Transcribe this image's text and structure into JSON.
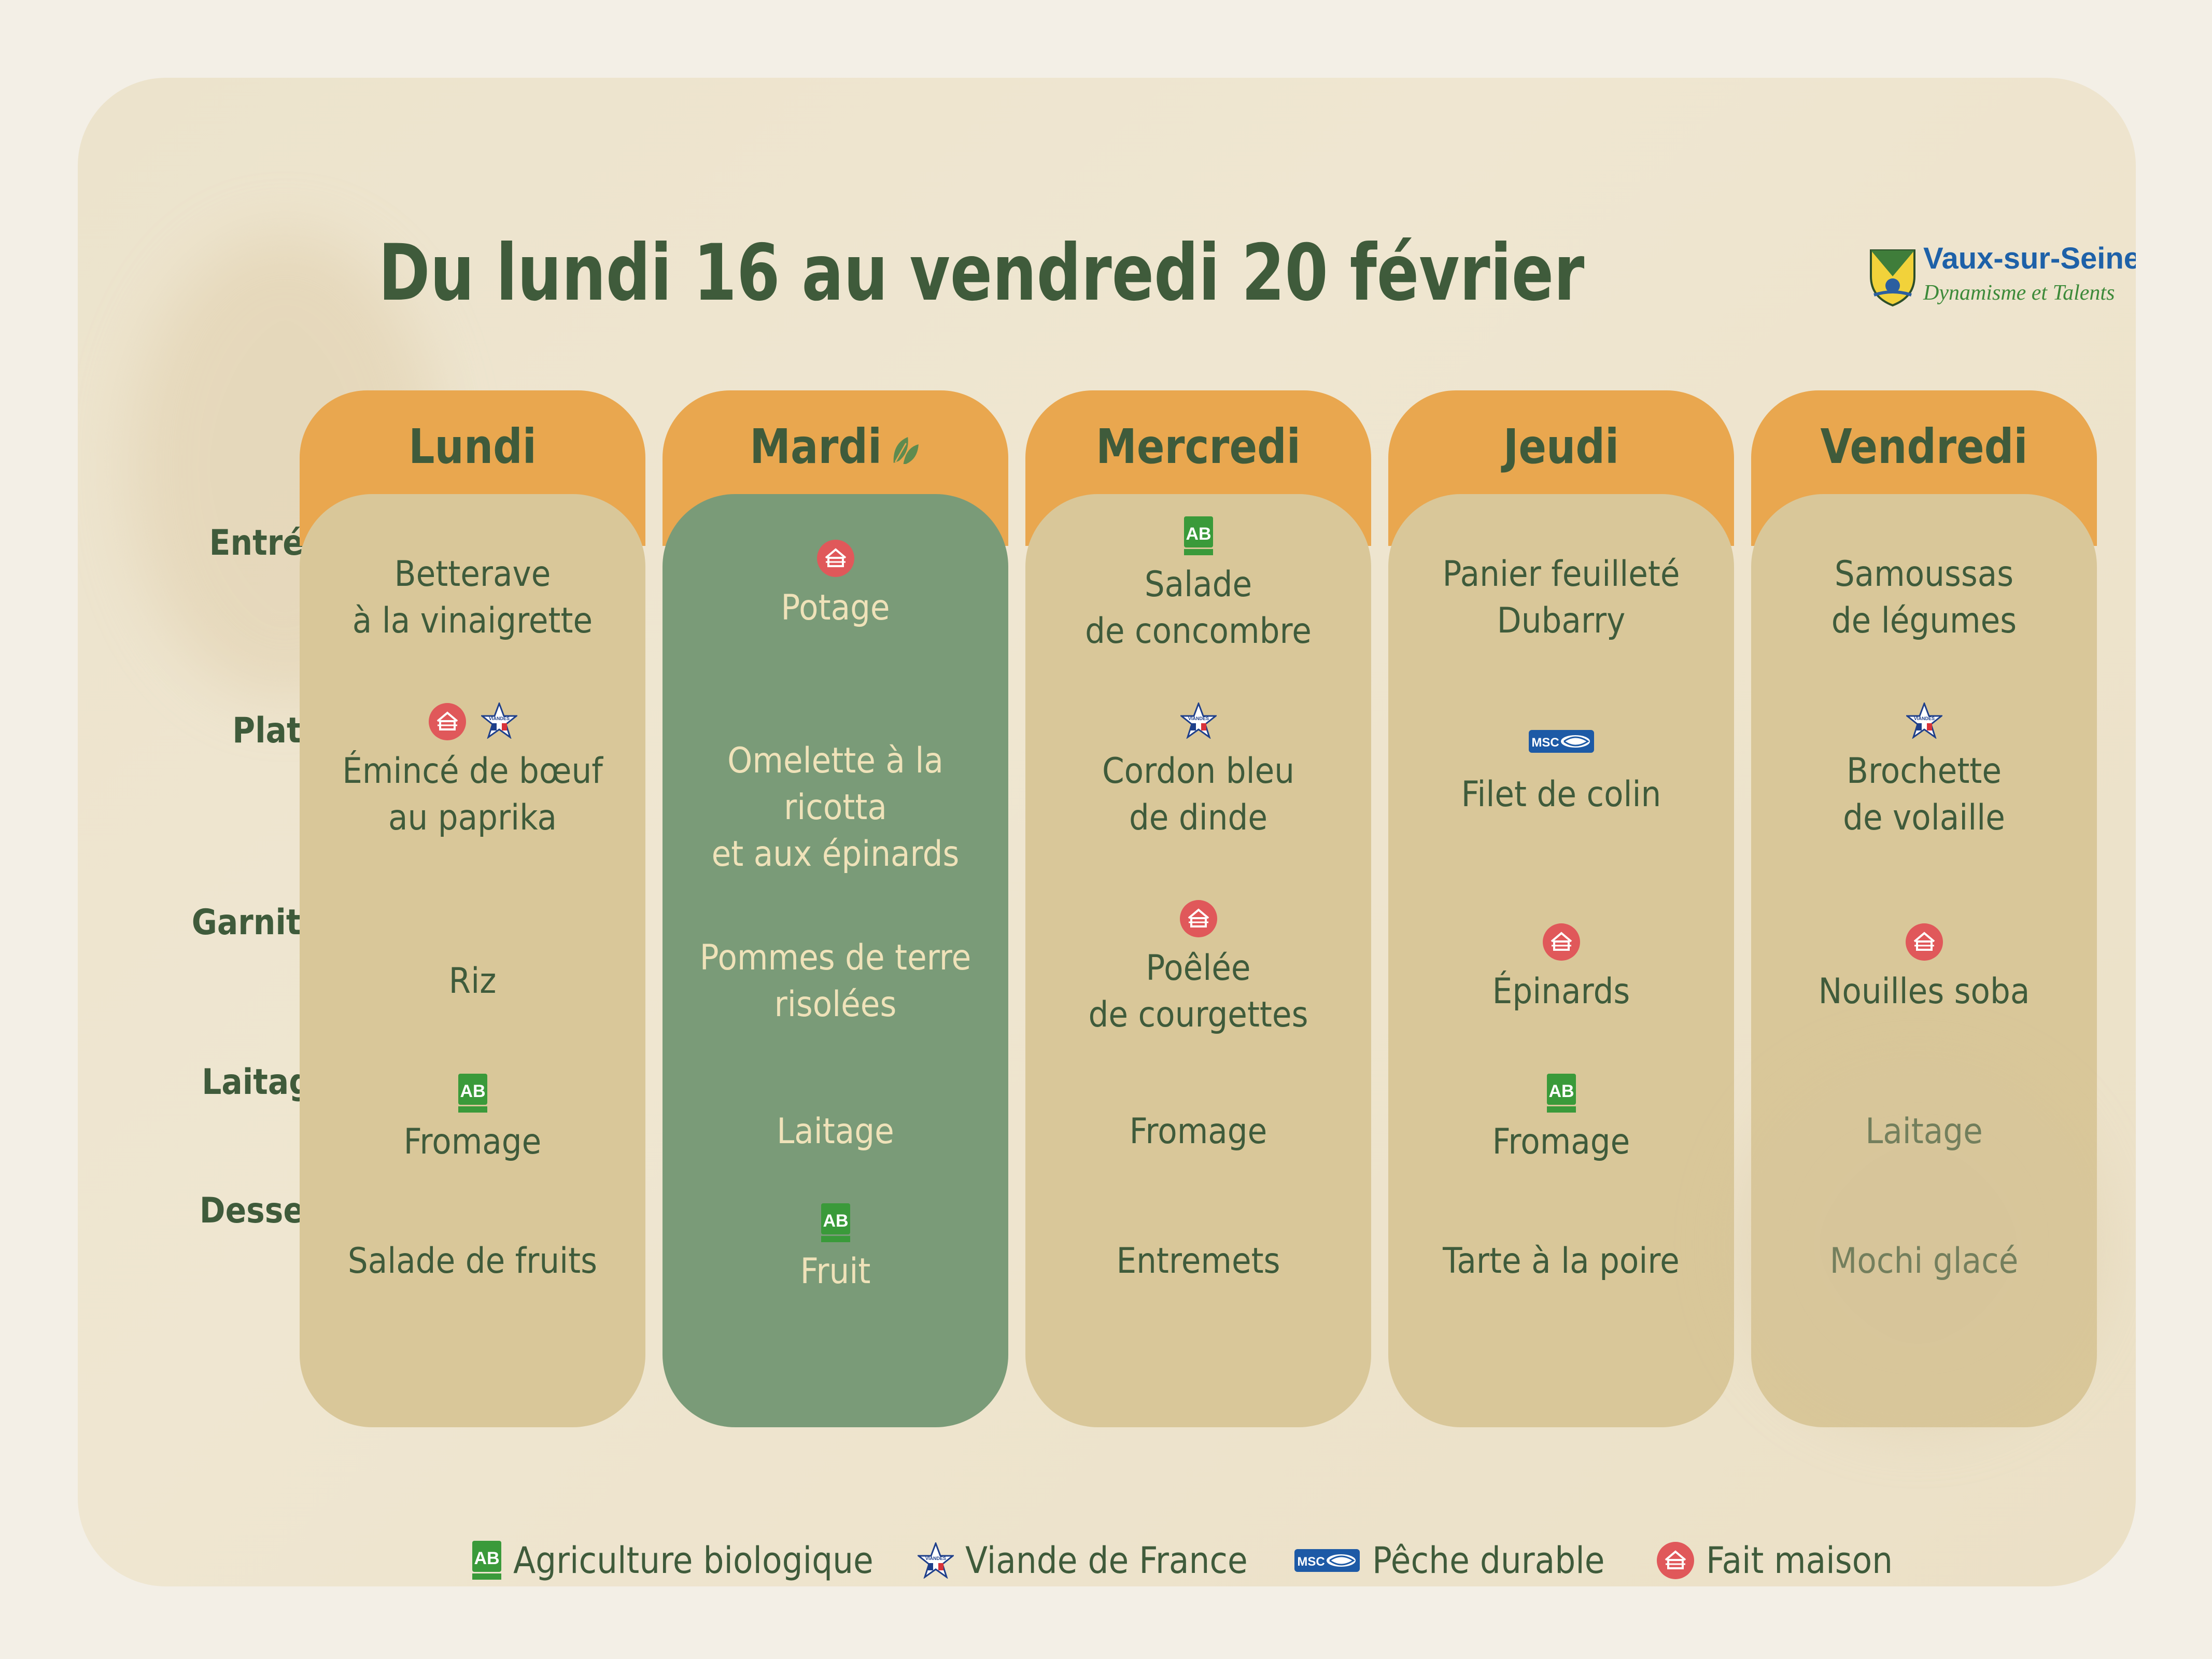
{
  "title": "Du lundi 16 au vendredi 20 février",
  "logo": {
    "name": "Vaux-sur-Seine",
    "tagline": "Dynamisme et Talents"
  },
  "row_labels": [
    "Entrée",
    "Plat",
    "Garniture",
    "Laitage",
    "Dessert"
  ],
  "days": [
    {
      "name": "Lundi",
      "items": [
        {
          "lines": [
            "Betterave",
            "à la vinaigrette"
          ],
          "icons": []
        },
        {
          "lines": [
            "Émincé de bœuf",
            "au paprika"
          ],
          "icons": [
            "fait-maison",
            "viande-de-france"
          ]
        },
        {
          "lines": [
            "Riz"
          ],
          "icons": []
        },
        {
          "lines": [
            "Fromage"
          ],
          "icons": [
            "agriculture-biologique"
          ]
        },
        {
          "lines": [
            "Salade de fruits"
          ],
          "icons": []
        }
      ]
    },
    {
      "name": "Mardi",
      "vegetarian_icon": "leaf-icon",
      "items": [
        {
          "lines": [
            "Potage"
          ],
          "icons": [
            "fait-maison"
          ]
        },
        {
          "lines": [
            "Omelette à la ricotta",
            "et aux épinards"
          ],
          "icons": []
        },
        {
          "lines": [
            "Pommes de terre",
            "risolées"
          ],
          "icons": []
        },
        {
          "lines": [
            "Laitage"
          ],
          "icons": []
        },
        {
          "lines": [
            "Fruit"
          ],
          "icons": [
            "agriculture-biologique"
          ]
        }
      ]
    },
    {
      "name": "Mercredi",
      "items": [
        {
          "lines": [
            "Salade",
            "de concombre"
          ],
          "icons": [
            "agriculture-biologique"
          ]
        },
        {
          "lines": [
            "Cordon bleu",
            "de dinde"
          ],
          "icons": [
            "viande-de-france"
          ]
        },
        {
          "lines": [
            "Poêlée",
            "de courgettes"
          ],
          "icons": [
            "fait-maison"
          ]
        },
        {
          "lines": [
            "Fromage"
          ],
          "icons": []
        },
        {
          "lines": [
            "Entremets"
          ],
          "icons": []
        }
      ]
    },
    {
      "name": "Jeudi",
      "items": [
        {
          "lines": [
            "Panier feuilleté",
            "Dubarry"
          ],
          "icons": []
        },
        {
          "lines": [
            "Filet de colin"
          ],
          "icons": [
            "peche-durable"
          ]
        },
        {
          "lines": [
            "Épinards"
          ],
          "icons": [
            "fait-maison"
          ]
        },
        {
          "lines": [
            "Fromage"
          ],
          "icons": [
            "agriculture-biologique"
          ]
        },
        {
          "lines": [
            "Tarte à la poire"
          ],
          "icons": []
        }
      ]
    },
    {
      "name": "Vendredi",
      "items": [
        {
          "lines": [
            "Samoussas",
            "de légumes"
          ],
          "icons": []
        },
        {
          "lines": [
            "Brochette",
            "de volaille"
          ],
          "icons": [
            "viande-de-france"
          ]
        },
        {
          "lines": [
            "Nouilles soba"
          ],
          "icons": [
            "fait-maison"
          ]
        },
        {
          "lines": [
            "Laitage"
          ],
          "icons": []
        },
        {
          "lines": [
            "Mochi glacé"
          ],
          "icons": []
        }
      ]
    }
  ],
  "legend": [
    {
      "icon": "agriculture-biologique",
      "label": "Agriculture biologique"
    },
    {
      "icon": "viande-de-france",
      "label": "Viande de France"
    },
    {
      "icon": "peche-durable",
      "label": "Pêche durable"
    },
    {
      "icon": "fait-maison",
      "label": "Fait maison"
    }
  ],
  "colors": {
    "header_orange": "#e9a74f",
    "column_beige": "#d9c799",
    "column_green": "#7a9b78",
    "text_dark_green": "#3f5b3b",
    "text_on_green": "#efe2b9",
    "fait_maison_red": "#e0585a",
    "bio_green": "#3a9a3a",
    "msc_blue": "#1d5aa6"
  }
}
